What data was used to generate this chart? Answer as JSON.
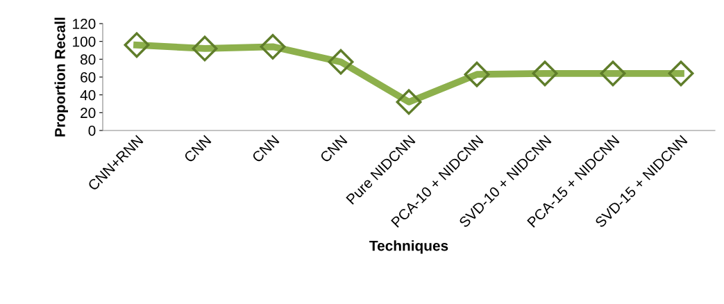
{
  "chart_data": {
    "type": "line",
    "xlabel": "Techniques",
    "ylabel": "Proportion Recall",
    "categories": [
      "CNN+RNN",
      "CNN",
      "CNN",
      "CNN",
      "Pure NIDCNN",
      "PCA-10 + NIDCNN",
      "SVD-10 + NIDCNN",
      "PCA-15 + NIDCNN",
      "SVD-15 + NIDCNN"
    ],
    "series": [
      {
        "color": "#8db04c",
        "values": [
          96,
          92,
          94,
          77,
          32,
          63,
          64,
          64,
          64
        ]
      }
    ],
    "ylim": [
      0,
      120
    ],
    "yticks": [
      0,
      20,
      40,
      60,
      80,
      100,
      120
    ],
    "grid": false,
    "legend": false,
    "marker": "diamond",
    "line_style": "solid"
  }
}
